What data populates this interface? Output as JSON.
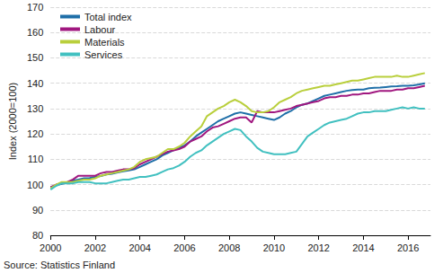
{
  "chart_data": {
    "type": "line",
    "y_label": "Index (2000=100)",
    "annotation": "Source: Statistics Finland",
    "legend": "upper left",
    "grid": true,
    "xlim": [
      2000,
      2017
    ],
    "xticks": [
      2000,
      2002,
      2004,
      2006,
      2008,
      2010,
      2012,
      2014,
      2016
    ],
    "ylim": [
      80,
      170
    ],
    "yticks": [
      80,
      90,
      100,
      110,
      120,
      130,
      140,
      150,
      160,
      170
    ],
    "x": [
      2000,
      2000.25,
      2000.5,
      2000.75,
      2001,
      2001.25,
      2001.5,
      2001.75,
      2002,
      2002.25,
      2002.5,
      2002.75,
      2003,
      2003.25,
      2003.5,
      2003.75,
      2004,
      2004.25,
      2004.5,
      2004.75,
      2005,
      2005.25,
      2005.5,
      2005.75,
      2006,
      2006.25,
      2006.5,
      2006.75,
      2007,
      2007.25,
      2007.5,
      2007.75,
      2008,
      2008.25,
      2008.5,
      2008.75,
      2009,
      2009.25,
      2009.5,
      2009.75,
      2010,
      2010.25,
      2010.5,
      2010.75,
      2011,
      2011.25,
      2011.5,
      2011.75,
      2012,
      2012.25,
      2012.5,
      2012.75,
      2013,
      2013.25,
      2013.5,
      2013.75,
      2014,
      2014.25,
      2014.5,
      2014.75,
      2015,
      2015.25,
      2015.5,
      2015.75,
      2016,
      2016.25,
      2016.5,
      2016.75
    ],
    "series": [
      {
        "name": "Total index",
        "color": "#1f6fa8",
        "values": [
          99,
          99.7,
          100.3,
          100.8,
          101.5,
          102,
          102.5,
          102.6,
          103,
          103.4,
          104,
          104.3,
          104.8,
          105.2,
          105.6,
          106,
          107,
          108,
          109,
          110,
          111.5,
          112.5,
          113.5,
          114.5,
          115.5,
          117,
          119,
          120.5,
          122,
          123.5,
          125,
          126,
          127,
          128,
          128.5,
          128,
          127.5,
          127,
          126.5,
          126,
          125.5,
          126.5,
          128,
          129,
          130.5,
          131.5,
          132,
          133,
          134,
          135,
          135.5,
          136,
          136.5,
          137,
          137.3,
          137.5,
          137.5,
          138,
          138.2,
          138.3,
          138.5,
          138.7,
          138.8,
          139,
          139,
          139.2,
          139.5,
          140
        ]
      },
      {
        "name": "Labour",
        "color": "#a0177f",
        "values": [
          99,
          100,
          100.5,
          101,
          102,
          103.5,
          103.5,
          103.5,
          103.5,
          104.5,
          105,
          105,
          105.5,
          106,
          106,
          106.5,
          108,
          109,
          110,
          111,
          112,
          113,
          113.5,
          114,
          115,
          117,
          118,
          119,
          121,
          122.5,
          123,
          124,
          125,
          126,
          126.5,
          126.5,
          124.5,
          129,
          128.5,
          128.5,
          128.5,
          129,
          129.5,
          130,
          131,
          131.5,
          132,
          132.5,
          133,
          134,
          134.5,
          134.5,
          135,
          135,
          135.5,
          135.5,
          136,
          136,
          136.5,
          137,
          137,
          137,
          137.5,
          137.5,
          138,
          138,
          138.5,
          139
        ]
      },
      {
        "name": "Materials",
        "color": "#b9cf3c",
        "values": [
          98.5,
          100,
          101,
          101,
          101,
          101.5,
          102,
          102,
          102.5,
          103.5,
          104,
          104.5,
          105,
          105.5,
          106,
          107,
          109,
          110,
          110.5,
          111,
          112.5,
          114,
          114,
          115,
          116.5,
          119,
          121,
          123,
          127,
          128.5,
          130,
          131,
          132.5,
          133.5,
          132.5,
          131,
          129,
          128.5,
          128.5,
          129,
          130.5,
          132.5,
          133.5,
          134.5,
          136,
          137,
          137.5,
          138,
          138.5,
          139,
          139,
          139.5,
          140,
          140.5,
          141,
          141,
          141.5,
          142,
          142.5,
          142.5,
          142.5,
          142.5,
          143,
          142.5,
          142.5,
          143,
          143.5,
          144
        ]
      },
      {
        "name": "Services",
        "color": "#41c0c0",
        "values": [
          98,
          99.5,
          100.5,
          100.5,
          100.5,
          101,
          101,
          101,
          100.5,
          100.5,
          100.5,
          101,
          101.5,
          102,
          102,
          102.5,
          103,
          103,
          103.5,
          104,
          105,
          106,
          106.5,
          107.5,
          109,
          111,
          112.5,
          113.5,
          115.5,
          117,
          118.5,
          120,
          121,
          122,
          121.5,
          119,
          117,
          114.5,
          113,
          112.5,
          112,
          112,
          112,
          112.5,
          113,
          116,
          119,
          120.5,
          122,
          123.5,
          124.5,
          125,
          125.5,
          126,
          127,
          128,
          128.5,
          128.5,
          129,
          129,
          129,
          129.5,
          130,
          130.5,
          130,
          130.5,
          130,
          130
        ]
      }
    ]
  }
}
